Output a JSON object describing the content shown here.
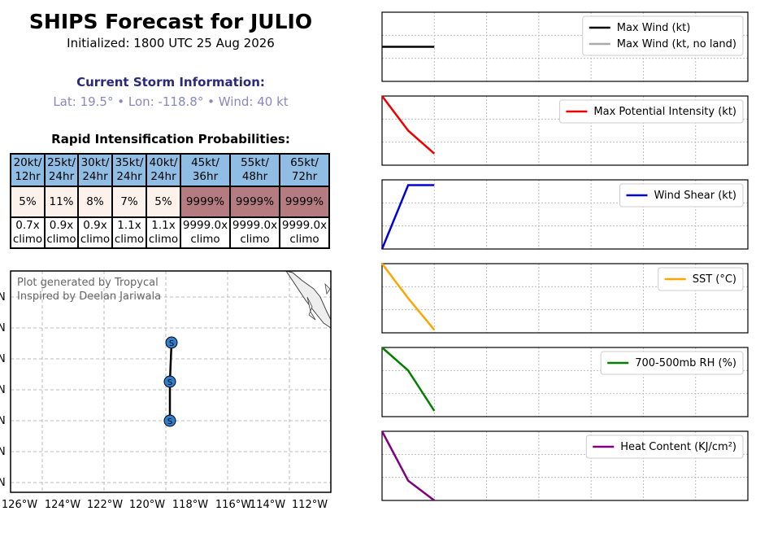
{
  "header": {
    "title": "SHIPS Forecast for JULIO",
    "subtitle": "Initialized: 1800 UTC 25 Aug 2026",
    "current_heading": "Current Storm Information:",
    "current_info": "Lat: 19.5° • Lon: -118.8° • Wind: 40 kt",
    "ri_heading": "Rapid Intensification Probabilities:"
  },
  "ri_table": {
    "headers": [
      [
        "20kt/",
        "12hr"
      ],
      [
        "25kt/",
        "24hr"
      ],
      [
        "30kt/",
        "24hr"
      ],
      [
        "35kt/",
        "24hr"
      ],
      [
        "40kt/",
        "24hr"
      ],
      [
        "45kt/",
        "36hr"
      ],
      [
        "55kt/",
        "48hr"
      ],
      [
        "65kt/",
        "72hr"
      ]
    ],
    "probabilities": [
      "5%",
      "11%",
      "8%",
      "7%",
      "5%",
      "9999%",
      "9999%",
      "9999%"
    ],
    "climo": [
      [
        "0.7x",
        "climo"
      ],
      [
        "0.9x",
        "climo"
      ],
      [
        "0.9x",
        "climo"
      ],
      [
        "1.1x",
        "climo"
      ],
      [
        "1.1x",
        "climo"
      ],
      [
        "9999.0x",
        "climo"
      ],
      [
        "9999.0x",
        "climo"
      ],
      [
        "9999.0x",
        "climo"
      ]
    ],
    "colors": {
      "header": "#8fbde3",
      "low": "#fdf1ec",
      "high": "#b47c80"
    }
  },
  "map": {
    "credit_line1": "Plot generated by Tropycal",
    "credit_line2": "Inspired by Deelan Jariwala",
    "track_marker": "S",
    "track_color": "#2e7fd0",
    "x_ticks": [
      "126°W",
      "124°W",
      "122°W",
      "120°W",
      "118°W",
      "116°W",
      "114°W",
      "112°W"
    ],
    "y_ticks": [
      "N",
      "N",
      "N",
      "N",
      "N",
      "N",
      "N"
    ]
  },
  "chart_data": [
    {
      "type": "line",
      "x": [
        0,
        6,
        12
      ],
      "series": [
        {
          "name": "Max Wind (kt)",
          "values": [
            40,
            40,
            40
          ],
          "color": "#000000"
        },
        {
          "name": "Max Wind (kt, no land)",
          "values": [
            null,
            null,
            null
          ],
          "color": "#aaaaaa"
        }
      ],
      "legend": "top-right",
      "grid": true,
      "ylim": [
        0,
        80
      ]
    },
    {
      "type": "line",
      "x": [
        0,
        6,
        12
      ],
      "series": [
        {
          "name": "Max Potential Intensity (kt)",
          "values": [
            160,
            130,
            110
          ],
          "color": "#ee0000"
        }
      ],
      "legend": "top-right",
      "grid": true,
      "ylim": [
        100,
        160
      ]
    },
    {
      "type": "line",
      "x": [
        0,
        6,
        12
      ],
      "series": [
        {
          "name": "Wind Shear (kt)",
          "values": [
            0,
            12,
            12
          ],
          "color": "#0000dd"
        }
      ],
      "legend": "top-right",
      "grid": true,
      "ylim": [
        0,
        13
      ]
    },
    {
      "type": "line",
      "x": [
        0,
        6,
        12
      ],
      "series": [
        {
          "name": "SST (°C)",
          "values": [
            30,
            28.8,
            27.7
          ],
          "color": "#ffa500"
        }
      ],
      "legend": "top-right",
      "grid": true,
      "ylim": [
        27.6,
        30
      ]
    },
    {
      "type": "line",
      "x": [
        0,
        6,
        12
      ],
      "series": [
        {
          "name": "700-500mb RH (%)",
          "values": [
            80,
            76,
            69
          ],
          "color": "#008000"
        }
      ],
      "legend": "top-right",
      "grid": true,
      "ylim": [
        68,
        80
      ]
    },
    {
      "type": "line",
      "x": [
        0,
        6,
        12
      ],
      "series": [
        {
          "name": "Heat Content (KJ/cm²)",
          "values": [
            40,
            15,
            5
          ],
          "color": "#800080"
        }
      ],
      "legend": "top-right",
      "grid": true,
      "ylim": [
        5,
        40
      ]
    }
  ]
}
